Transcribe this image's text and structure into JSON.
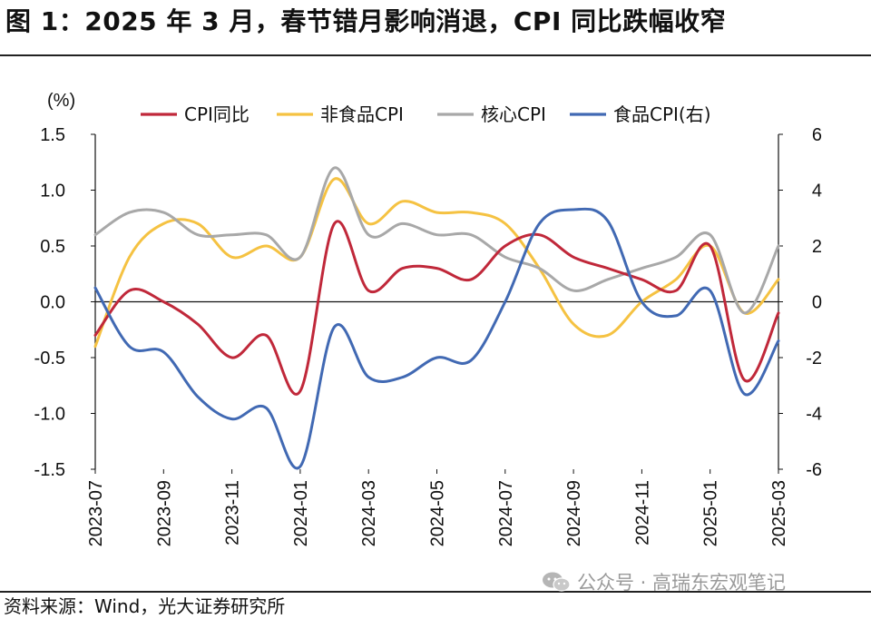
{
  "header": {
    "title": "图 1：2025 年 3 月，春节错月影响消退，CPI 同比跌幅收窄"
  },
  "footer": {
    "source": "资料来源：Wind，光大证券研究所",
    "watermark": "公众号 · 高瑞东宏观笔记"
  },
  "chart_data": {
    "type": "line",
    "title": "2025 年 3 月，春节错月影响消退，CPI 同比跌幅收窄",
    "left_unit": "(%)",
    "ylim_left": [
      -1.5,
      1.5
    ],
    "ylim_right": [
      -6,
      6
    ],
    "left_ticks": [
      1.5,
      1.0,
      0.5,
      0.0,
      -0.5,
      -1.0,
      -1.5
    ],
    "left_tick_labels": [
      "1.5",
      "1.0",
      "0.5",
      "0.0",
      "-0.5",
      "-1.0",
      "-1.5"
    ],
    "right_ticks": [
      6,
      4,
      2,
      0,
      -2,
      -4,
      -6
    ],
    "right_tick_labels": [
      "6",
      "4",
      "2",
      "0",
      "-2",
      "-4",
      "-6"
    ],
    "x": [
      "2023-07",
      "2023-08",
      "2023-09",
      "2023-10",
      "2023-11",
      "2023-12",
      "2024-01",
      "2024-02",
      "2024-03",
      "2024-04",
      "2024-05",
      "2024-06",
      "2024-07",
      "2024-08",
      "2024-09",
      "2024-10",
      "2024-11",
      "2024-12",
      "2025-01",
      "2025-02",
      "2025-03"
    ],
    "x_tick_labels": [
      "2023-07",
      "2023-09",
      "2023-11",
      "2024-01",
      "2024-03",
      "2024-05",
      "2024-07",
      "2024-09",
      "2024-11",
      "2025-01",
      "2025-03"
    ],
    "series": [
      {
        "name": "CPI同比",
        "axis": "left",
        "color": "#c0283a",
        "values": [
          -0.3,
          0.1,
          0.0,
          -0.2,
          -0.5,
          -0.3,
          -0.8,
          0.7,
          0.1,
          0.3,
          0.3,
          0.2,
          0.5,
          0.6,
          0.4,
          0.3,
          0.2,
          0.1,
          0.5,
          -0.7,
          -0.1
        ]
      },
      {
        "name": "非食品CPI",
        "axis": "left",
        "color": "#f5c242",
        "values": [
          -0.4,
          0.4,
          0.7,
          0.7,
          0.4,
          0.5,
          0.4,
          1.1,
          0.7,
          0.9,
          0.8,
          0.8,
          0.7,
          0.3,
          -0.2,
          -0.3,
          0.0,
          0.2,
          0.5,
          -0.1,
          0.2
        ]
      },
      {
        "name": "核心CPI",
        "axis": "left",
        "color": "#a8a8a8",
        "values": [
          0.6,
          0.8,
          0.8,
          0.6,
          0.6,
          0.6,
          0.4,
          1.2,
          0.6,
          0.7,
          0.6,
          0.6,
          0.4,
          0.3,
          0.1,
          0.2,
          0.3,
          0.4,
          0.6,
          -0.1,
          0.5
        ]
      },
      {
        "name": "食品CPI(右)",
        "axis": "right",
        "color": "#4169b3",
        "values": [
          0.5,
          -1.6,
          -1.8,
          -3.4,
          -4.2,
          -3.8,
          -5.9,
          -0.9,
          -2.7,
          -2.7,
          -2.0,
          -2.1,
          0.0,
          2.8,
          3.3,
          2.9,
          0.0,
          -0.5,
          0.4,
          -3.3,
          -1.4
        ]
      }
    ]
  }
}
